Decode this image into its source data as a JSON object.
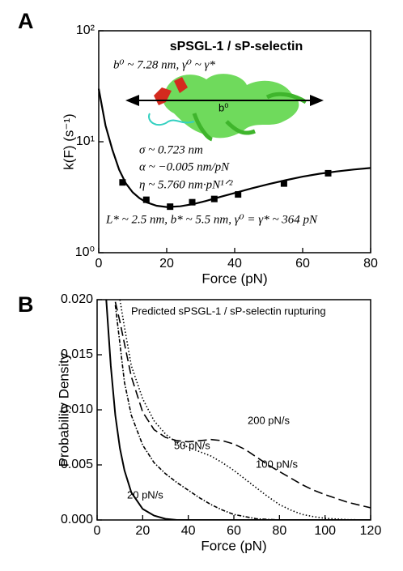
{
  "chart_data": [
    {
      "type": "scatter",
      "panel": "A",
      "title": "sPSGL-1 / sP-selectin",
      "x_label": "Force (pN)",
      "y_label": "k(F) (s⁻¹)",
      "annotations": [
        "b⁰ ~ 7.28 nm, γ⁰ ~ γ*",
        "b⁰",
        "σ ~ 0.723 nm",
        "α ~ −0.005 nm/pN",
        "η ~ 5.760 nm·pN¹ᐟ²",
        "L* ~ 2.5 nm, b* ~ 5.5 nm, γ⁰ = γ* ~ 364 pN"
      ],
      "xlim": [
        0,
        80
      ],
      "xticks": [
        0,
        20,
        40,
        60,
        80
      ],
      "ylim": [
        1,
        100
      ],
      "yscale": "log",
      "yticks": [
        {
          "value": 1,
          "label": "10⁰"
        },
        {
          "value": 10,
          "label": "10¹"
        },
        {
          "value": 100,
          "label": "10²"
        }
      ],
      "series": [
        {
          "type": "scatter",
          "color": "#000000",
          "x": [
            7,
            14,
            21,
            27.5,
            34,
            41,
            54.5,
            67.5
          ],
          "values": [
            4.3,
            3.0,
            2.6,
            2.85,
            3.05,
            3.35,
            4.2,
            5.2
          ]
        },
        {
          "type": "line",
          "color": "#000000",
          "x": [
            0,
            2,
            4,
            6,
            8,
            10,
            12,
            14,
            17,
            20,
            24,
            28,
            32,
            36,
            40,
            45,
            50,
            55,
            60,
            65,
            70,
            75,
            80
          ],
          "values": [
            30,
            14,
            8.5,
            5.6,
            4.2,
            3.5,
            3.1,
            2.85,
            2.65,
            2.58,
            2.62,
            2.75,
            2.95,
            3.2,
            3.45,
            3.8,
            4.15,
            4.5,
            4.85,
            5.15,
            5.4,
            5.62,
            5.8
          ]
        }
      ]
    },
    {
      "type": "line",
      "panel": "B",
      "title": "Predicted sPSGL-1 / sP-selectin rupturing",
      "x_label": "Force (pN)",
      "y_label": "Probability Density",
      "xlim": [
        0,
        120
      ],
      "xticks": [
        0,
        20,
        40,
        60,
        80,
        100,
        120
      ],
      "ylim": [
        0,
        0.02
      ],
      "yticks": [
        {
          "value": 0,
          "label": "0.000"
        },
        {
          "value": 0.005,
          "label": "0.005"
        },
        {
          "value": 0.01,
          "label": "0.010"
        },
        {
          "value": 0.015,
          "label": "0.015"
        },
        {
          "value": 0.02,
          "label": "0.020"
        }
      ],
      "x": [
        4,
        6,
        8,
        10,
        12,
        15,
        20,
        25,
        30,
        35,
        40,
        45,
        50,
        55,
        60,
        65,
        70,
        75,
        80,
        85,
        90,
        95,
        100,
        110,
        120
      ],
      "series": [
        {
          "name": "20 pN/s",
          "color": "#000000",
          "style": "solid",
          "values": [
            0.02,
            0.014,
            0.0095,
            0.0065,
            0.0045,
            0.0025,
            0.001,
            0.0004,
            0.0001,
            0,
            0,
            0,
            0,
            0,
            0,
            0,
            0,
            0,
            0,
            0,
            0,
            0,
            0,
            0,
            0
          ]
        },
        {
          "name": "50 pN/s",
          "color": "#000000",
          "style": "dashdot",
          "values": [
            null,
            null,
            0.0195,
            0.016,
            0.0125,
            0.0095,
            0.0068,
            0.0052,
            0.0042,
            0.0034,
            0.0027,
            0.002,
            0.0014,
            0.0009,
            0.0005,
            0.0003,
            0.0001,
            5e-05,
            0,
            0,
            0,
            0,
            0,
            0,
            0
          ]
        },
        {
          "name": "100 pN/s",
          "color": "#000000",
          "style": "dotted",
          "values": [
            null,
            null,
            null,
            0.02,
            0.0175,
            0.014,
            0.011,
            0.009,
            0.0078,
            0.007,
            0.0066,
            0.0062,
            0.0058,
            0.0052,
            0.0045,
            0.0037,
            0.0029,
            0.0021,
            0.0014,
            0.0009,
            0.0005,
            0.0003,
            0.00015,
            3e-05,
            0
          ]
        },
        {
          "name": "200 pN/s",
          "color": "#000000",
          "style": "dashed",
          "values": [
            null,
            null,
            0.0198,
            0.018,
            0.016,
            0.013,
            0.0098,
            0.0082,
            0.0075,
            0.0072,
            0.0071,
            0.0072,
            0.0073,
            0.0072,
            0.0069,
            0.0064,
            0.0057,
            0.005,
            0.0044,
            0.0038,
            0.0032,
            0.0027,
            0.0023,
            0.0016,
            0.0011
          ]
        }
      ]
    }
  ]
}
